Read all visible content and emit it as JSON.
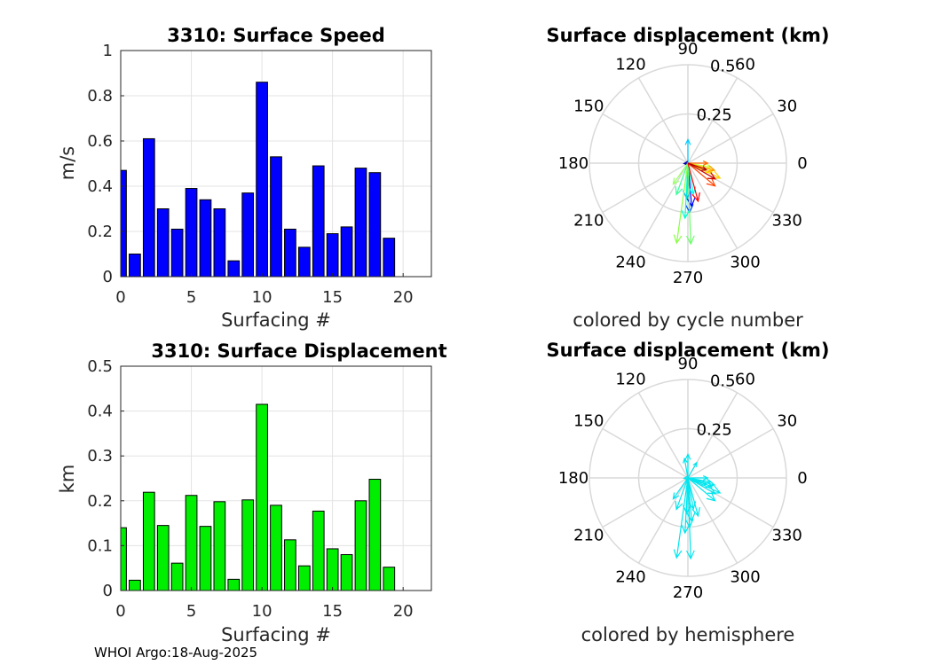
{
  "chart_data": [
    {
      "type": "bar",
      "title": "3310: Surface Speed",
      "xlabel": "Surfacing #",
      "ylabel": "m/s",
      "xlim": [
        0,
        22
      ],
      "ylim": [
        0,
        1
      ],
      "xticks": [
        0,
        5,
        10,
        15,
        20
      ],
      "yticks": [
        0,
        0.2,
        0.4,
        0.6,
        0.8,
        1
      ],
      "ytick_labels": [
        "0",
        "0.2",
        "0.4",
        "0.6",
        "0.8",
        "1"
      ],
      "bar_color": "#0000ff",
      "x": [
        0,
        1,
        2,
        3,
        4,
        5,
        6,
        7,
        8,
        9,
        10,
        11,
        12,
        13,
        14,
        15,
        16,
        17,
        18,
        19
      ],
      "values": [
        0.47,
        0.1,
        0.61,
        0.3,
        0.21,
        0.39,
        0.34,
        0.3,
        0.07,
        0.37,
        0.86,
        0.53,
        0.21,
        0.13,
        0.49,
        0.19,
        0.22,
        0.48,
        0.46,
        0.17
      ]
    },
    {
      "type": "bar",
      "title": "3310: Surface Displacement",
      "xlabel": "Surfacing #",
      "ylabel": "km",
      "xlim": [
        0,
        22
      ],
      "ylim": [
        0,
        0.5
      ],
      "xticks": [
        0,
        5,
        10,
        15,
        20
      ],
      "yticks": [
        0,
        0.1,
        0.2,
        0.3,
        0.4,
        0.5
      ],
      "ytick_labels": [
        "0",
        "0.1",
        "0.2",
        "0.3",
        "0.4",
        "0.5"
      ],
      "bar_color": "#00ee00",
      "x": [
        0,
        1,
        2,
        3,
        4,
        5,
        6,
        7,
        8,
        9,
        10,
        11,
        12,
        13,
        14,
        15,
        16,
        17,
        18,
        19
      ],
      "values": [
        0.14,
        0.023,
        0.219,
        0.145,
        0.061,
        0.212,
        0.143,
        0.198,
        0.025,
        0.202,
        0.415,
        0.19,
        0.113,
        0.055,
        0.177,
        0.093,
        0.08,
        0.2,
        0.248,
        0.052
      ]
    },
    {
      "type": "polar",
      "title": "Surface displacement (km)",
      "caption": "colored by cycle number",
      "rmax": 0.5,
      "rings": [
        0.25,
        0.5
      ],
      "ring_labels": [
        "0.25",
        "0.5"
      ],
      "angle_labels": [
        "0",
        "30",
        "60",
        "90",
        "120",
        "150",
        "180",
        "210",
        "240",
        "270",
        "300",
        "330"
      ],
      "vectors": [
        {
          "angle": 90,
          "r": 0.12,
          "color": "#00ccff"
        },
        {
          "angle": 186,
          "r": 0.02,
          "color": "#0000aa"
        },
        {
          "angle": 272,
          "r": 0.25,
          "color": "#0044ff"
        },
        {
          "angle": 275,
          "r": 0.22,
          "color": "#0000ff"
        },
        {
          "angle": 268,
          "r": 0.18,
          "color": "#00aaff"
        },
        {
          "angle": 280,
          "r": 0.16,
          "color": "#00ffee"
        },
        {
          "angle": 250,
          "r": 0.17,
          "color": "#33ff99"
        },
        {
          "angle": 235,
          "r": 0.13,
          "color": "#99ff66"
        },
        {
          "angle": 267,
          "r": 0.28,
          "color": "#00ffcc"
        },
        {
          "angle": 272,
          "r": 0.41,
          "color": "#66ff66"
        },
        {
          "angle": 262,
          "r": 0.41,
          "color": "#88ff44"
        },
        {
          "angle": 350,
          "r": 0.12,
          "color": "#ccff33"
        },
        {
          "angle": 340,
          "r": 0.13,
          "color": "#ffee00"
        },
        {
          "angle": 335,
          "r": 0.18,
          "color": "#ffcc00"
        },
        {
          "angle": 345,
          "r": 0.14,
          "color": "#ff9900"
        },
        {
          "angle": 0,
          "r": 0.1,
          "color": "#ff6600"
        },
        {
          "angle": 320,
          "r": 0.18,
          "color": "#ff4400"
        },
        {
          "angle": 285,
          "r": 0.2,
          "color": "#ff0000"
        },
        {
          "angle": 330,
          "r": 0.16,
          "color": "#cc0000"
        },
        {
          "angle": 340,
          "r": 0.1,
          "color": "#aa0000"
        }
      ]
    },
    {
      "type": "polar",
      "title": "Surface displacement (km)",
      "caption": "colored by hemisphere",
      "rmax": 0.5,
      "rings": [
        0.25,
        0.5
      ],
      "ring_labels": [
        "0.25",
        "0.5"
      ],
      "angle_labels": [
        "0",
        "30",
        "60",
        "90",
        "120",
        "150",
        "180",
        "210",
        "240",
        "270",
        "300",
        "330"
      ],
      "vectors": [
        {
          "angle": 90,
          "r": 0.12,
          "color": "#00e5ee"
        },
        {
          "angle": 186,
          "r": 0.02,
          "color": "#00e5ee"
        },
        {
          "angle": 272,
          "r": 0.25,
          "color": "#00e5ee"
        },
        {
          "angle": 275,
          "r": 0.22,
          "color": "#00e5ee"
        },
        {
          "angle": 268,
          "r": 0.18,
          "color": "#00e5ee"
        },
        {
          "angle": 280,
          "r": 0.16,
          "color": "#00e5ee"
        },
        {
          "angle": 250,
          "r": 0.17,
          "color": "#00e5ee"
        },
        {
          "angle": 235,
          "r": 0.13,
          "color": "#00e5ee"
        },
        {
          "angle": 267,
          "r": 0.28,
          "color": "#00e5ee"
        },
        {
          "angle": 272,
          "r": 0.41,
          "color": "#00e5ee"
        },
        {
          "angle": 262,
          "r": 0.41,
          "color": "#00e5ee"
        },
        {
          "angle": 350,
          "r": 0.12,
          "color": "#00e5ee"
        },
        {
          "angle": 340,
          "r": 0.13,
          "color": "#00e5ee"
        },
        {
          "angle": 335,
          "r": 0.18,
          "color": "#00e5ee"
        },
        {
          "angle": 345,
          "r": 0.14,
          "color": "#00e5ee"
        },
        {
          "angle": 0,
          "r": 0.1,
          "color": "#00e5ee"
        },
        {
          "angle": 320,
          "r": 0.18,
          "color": "#00e5ee"
        },
        {
          "angle": 285,
          "r": 0.2,
          "color": "#00e5ee"
        },
        {
          "angle": 330,
          "r": 0.16,
          "color": "#00e5ee"
        },
        {
          "angle": 340,
          "r": 0.1,
          "color": "#00e5ee"
        },
        {
          "angle": 100,
          "r": 0.1,
          "color": "#00e5ee"
        },
        {
          "angle": 60,
          "r": 0.09,
          "color": "#00e5ee"
        }
      ]
    }
  ],
  "footer": "WHOI Argo:18-Aug-2025"
}
